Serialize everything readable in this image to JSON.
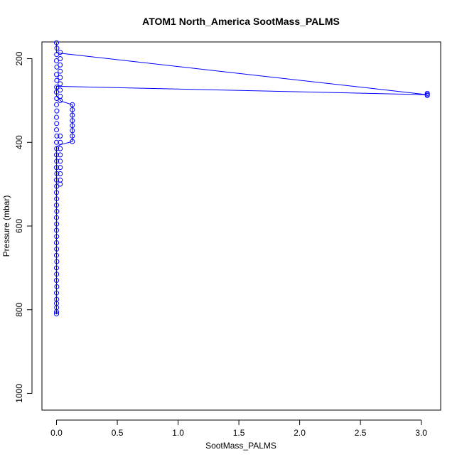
{
  "chart_data": {
    "type": "scatter",
    "title": "ATOM1 North_America SootMass_PALMS",
    "xlabel": "SootMass_PALMS",
    "ylabel": "Pressure (mbar)",
    "xlim": [
      -0.12,
      3.16
    ],
    "ylim": [
      1040,
      160
    ],
    "y_reversed": true,
    "grid": false,
    "x_ticks": [
      0,
      0.5,
      1,
      1.5,
      2,
      2.5,
      3
    ],
    "x_tick_labels": [
      "0.0",
      "0.5",
      "1.0",
      "1.5",
      "2.0",
      "2.5",
      "3.0"
    ],
    "y_ticks": [
      200,
      400,
      600,
      800,
      1000
    ],
    "y_tick_labels": [
      "200",
      "400",
      "600",
      "800",
      "1000"
    ],
    "series": [
      {
        "color": "#0000ff",
        "marker": "open-circle",
        "line": true,
        "points": [
          [
            0.0,
            162
          ],
          [
            0.003,
            175
          ],
          [
            0.001,
            190
          ],
          [
            0.0,
            205
          ],
          [
            0.002,
            220
          ],
          [
            0.0,
            238
          ],
          [
            0.002,
            252
          ],
          [
            0.001,
            268
          ],
          [
            0.0,
            280
          ],
          [
            0.001,
            295
          ],
          [
            0.0,
            310
          ],
          [
            0.002,
            325
          ],
          [
            0.0,
            340
          ],
          [
            0.001,
            355
          ],
          [
            0.0,
            370
          ],
          [
            0.002,
            385
          ],
          [
            0.0,
            400
          ],
          [
            0.001,
            415
          ],
          [
            0.0,
            430
          ],
          [
            0.001,
            445
          ],
          [
            0.0,
            460
          ],
          [
            0.002,
            475
          ],
          [
            0.0,
            490
          ],
          [
            0.001,
            505
          ],
          [
            0.0,
            520
          ],
          [
            0.001,
            535
          ],
          [
            0.0,
            550
          ],
          [
            0.002,
            565
          ],
          [
            0.0,
            580
          ],
          [
            0.001,
            595
          ],
          [
            0.0,
            610
          ],
          [
            0.001,
            625
          ],
          [
            0.0,
            640
          ],
          [
            0.001,
            655
          ],
          [
            0.0,
            670
          ],
          [
            0.002,
            685
          ],
          [
            0.0,
            700
          ],
          [
            0.001,
            715
          ],
          [
            0.0,
            730
          ],
          [
            0.002,
            745
          ],
          [
            0.0,
            760
          ],
          [
            0.001,
            775
          ],
          [
            0.0,
            785
          ],
          [
            0.001,
            795
          ],
          [
            0.0,
            805
          ],
          [
            0.0,
            810
          ],
          [
            0.03,
            185
          ],
          [
            0.03,
            200
          ],
          [
            0.03,
            215
          ],
          [
            0.03,
            230
          ],
          [
            0.03,
            245
          ],
          [
            0.03,
            260
          ],
          [
            0.03,
            275
          ],
          [
            0.03,
            290
          ],
          [
            0.03,
            300
          ],
          [
            0.13,
            310
          ],
          [
            0.13,
            322
          ],
          [
            0.13,
            335
          ],
          [
            0.13,
            348
          ],
          [
            0.13,
            360
          ],
          [
            0.13,
            372
          ],
          [
            0.13,
            385
          ],
          [
            0.13,
            398
          ],
          [
            0.03,
            385
          ],
          [
            0.03,
            400
          ],
          [
            0.03,
            415
          ],
          [
            0.03,
            430
          ],
          [
            0.03,
            445
          ],
          [
            0.03,
            460
          ],
          [
            0.03,
            475
          ],
          [
            0.03,
            490
          ],
          [
            0.03,
            500
          ],
          [
            3.05,
            283
          ],
          [
            3.05,
            286
          ],
          [
            3.05,
            288
          ]
        ],
        "line_path": [
          [
            0.0,
            162
          ],
          [
            0.001,
            175
          ],
          [
            0.0,
            186
          ],
          [
            3.05,
            286
          ],
          [
            0.0,
            266
          ],
          [
            0.0,
            290
          ],
          [
            0.04,
            302
          ],
          [
            0.13,
            310
          ],
          [
            0.13,
            398
          ],
          [
            0.04,
            405
          ],
          [
            0.0,
            410
          ],
          [
            0.0,
            810
          ]
        ]
      }
    ]
  }
}
